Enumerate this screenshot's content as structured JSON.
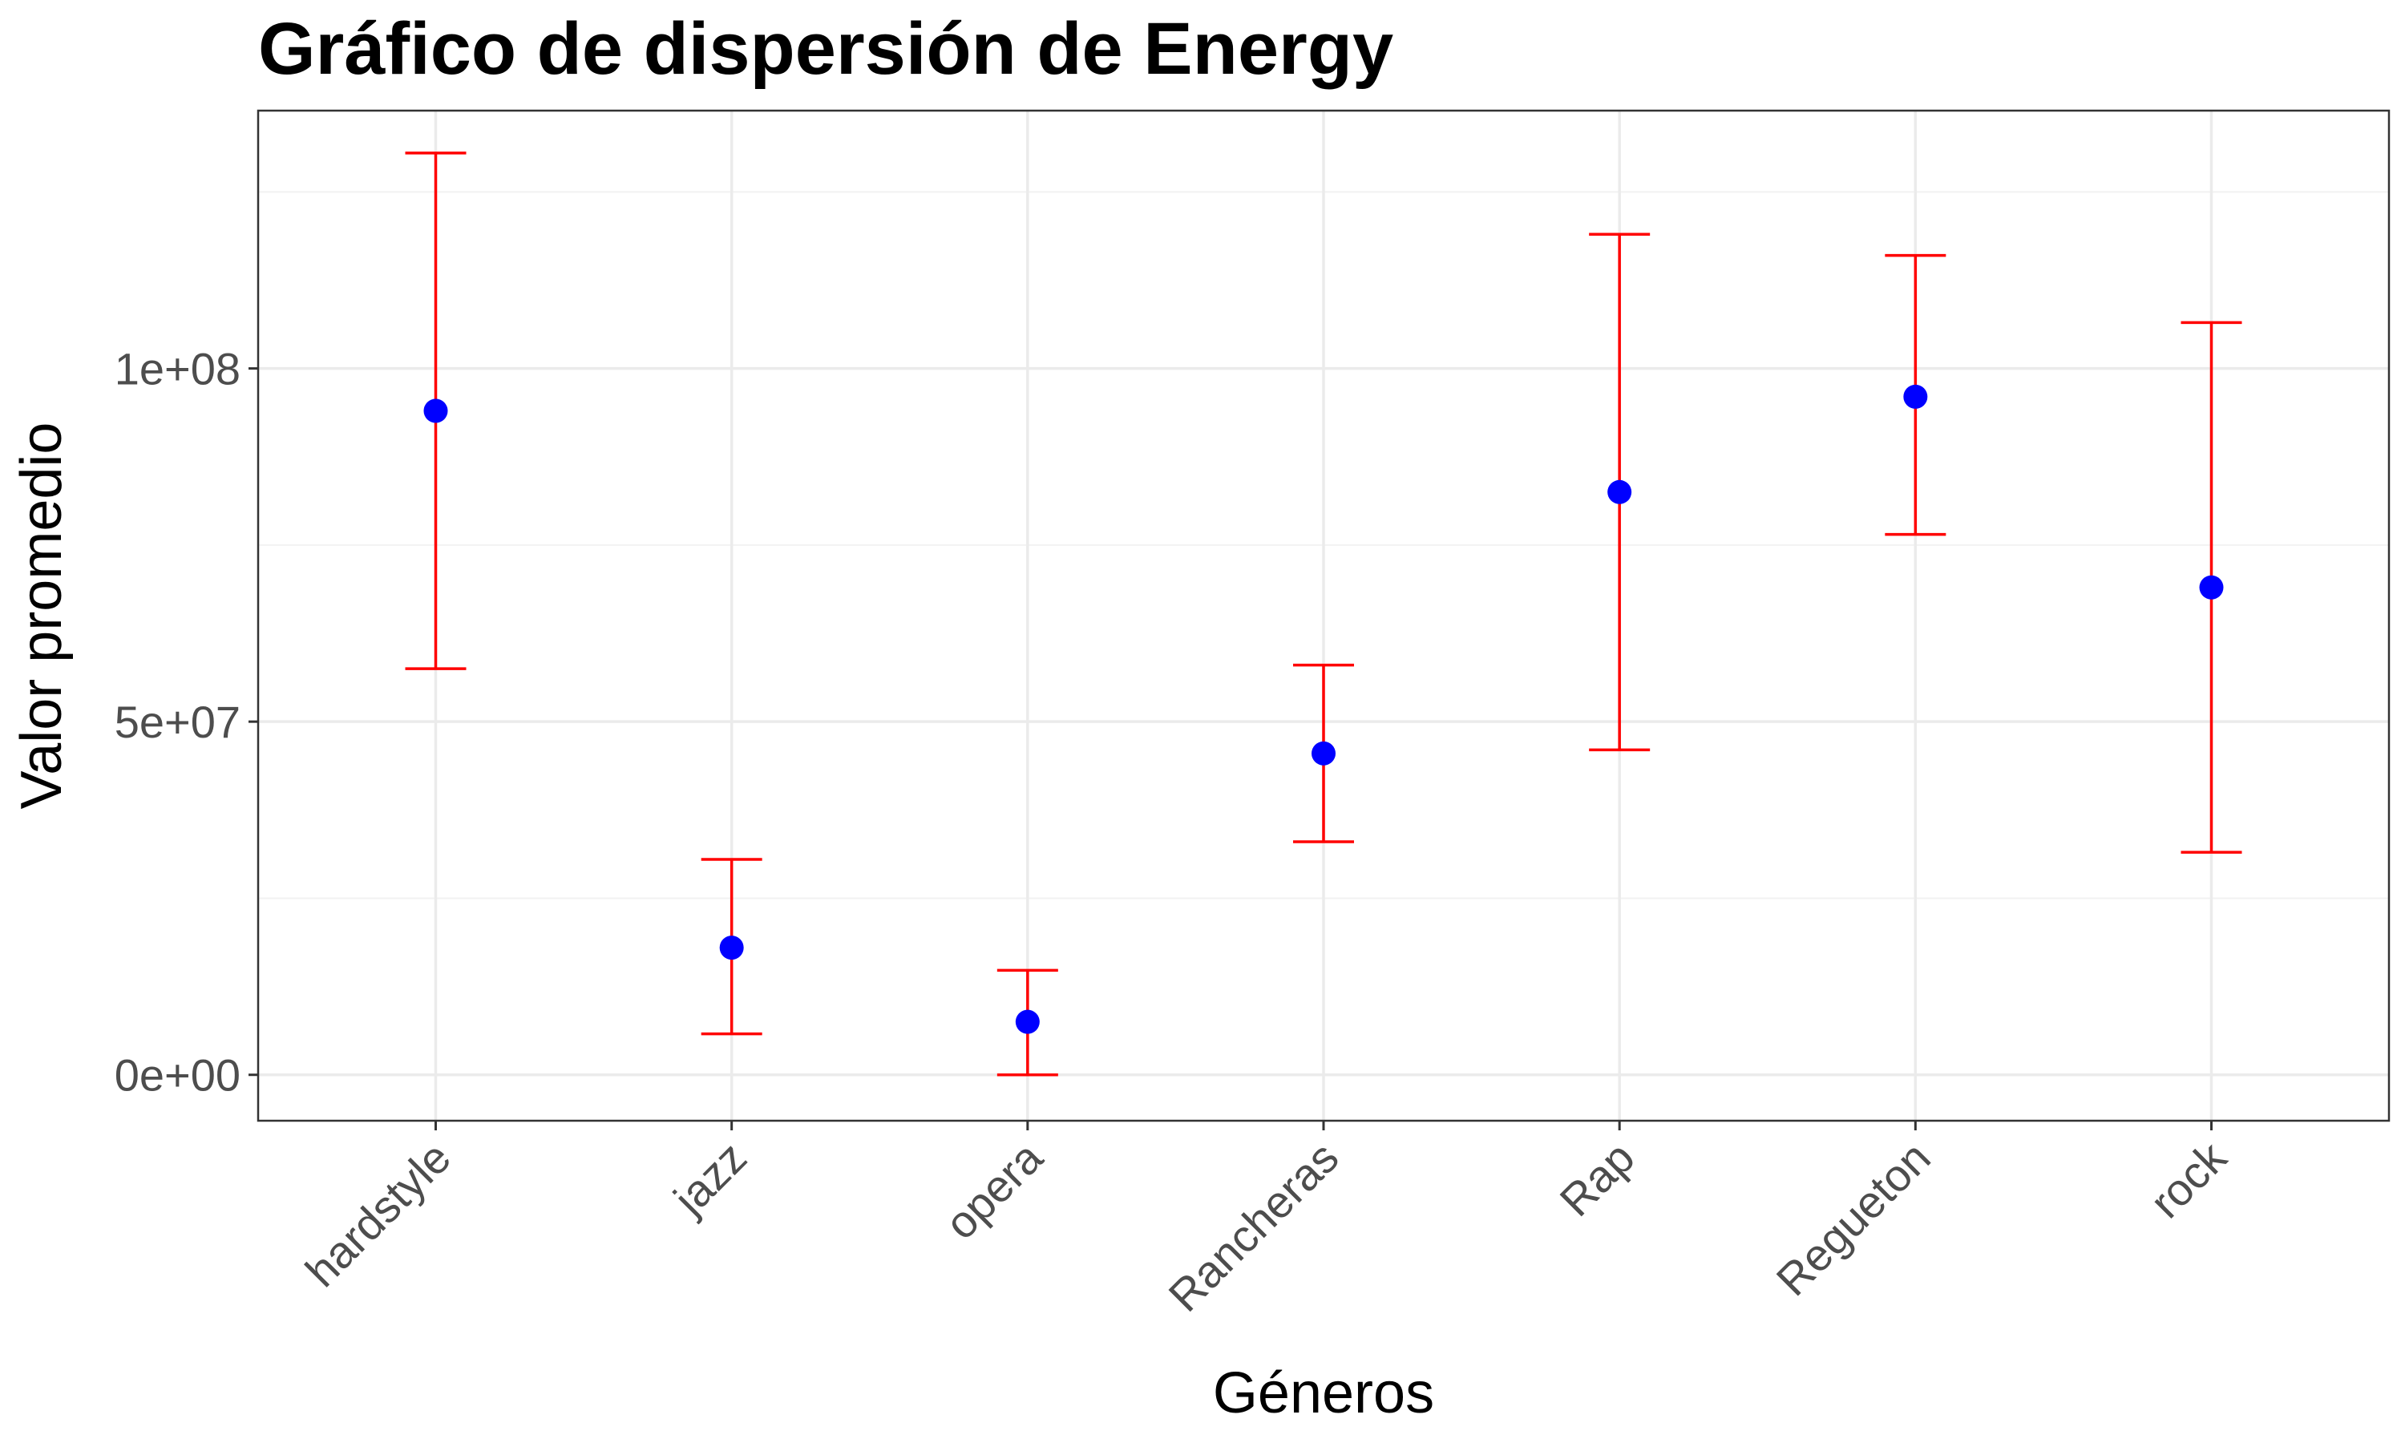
{
  "chart_data": {
    "type": "scatter",
    "title": "Gráfico de dispersión de Energy",
    "xlabel": "Géneros",
    "ylabel": "Valor promedio",
    "categories": [
      "hardstyle",
      "jazz",
      "opera",
      "Rancheras",
      "Rap",
      "Regueton",
      "rock"
    ],
    "series": [
      {
        "values": [
          94000000,
          18000000,
          7500000,
          45500000,
          82500000,
          96000000,
          69000000
        ],
        "error_low": [
          57500000,
          5800000,
          0,
          33000000,
          46000000,
          76500000,
          31500000
        ],
        "error_high": [
          130500000,
          30500000,
          14800000,
          58000000,
          119000000,
          116000000,
          106500000
        ]
      }
    ],
    "ylim": [
      -6500000,
      136500000
    ],
    "yticks": [
      0,
      50000000,
      100000000
    ],
    "ytick_labels": [
      "0e+00",
      "5e+07",
      "1e+08"
    ],
    "grid": true,
    "point_color": "#0000ff",
    "errorbar_color": "#ff0000"
  }
}
